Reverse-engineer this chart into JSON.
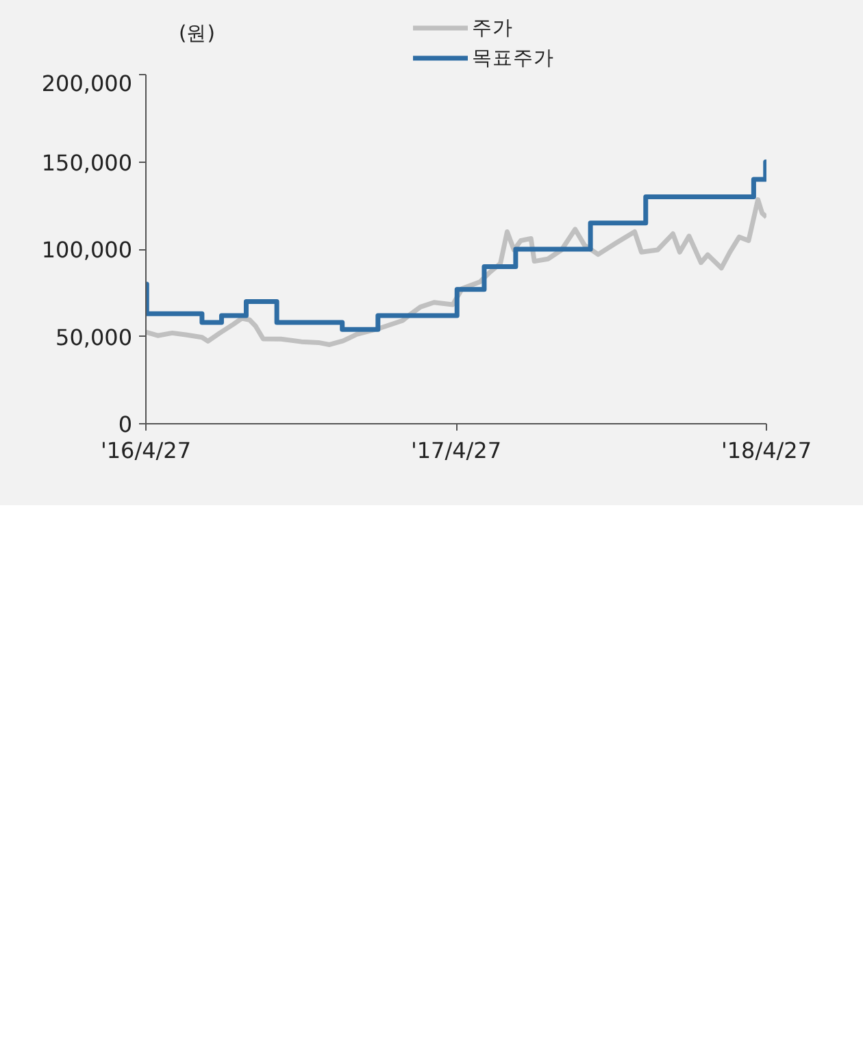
{
  "chart_data": {
    "type": "line",
    "ylabel": "(원)",
    "xlim": [
      "2016-04-27",
      "2018-04-27"
    ],
    "xticks": [
      {
        "value": "2016-04-27",
        "label": "'16/4/27"
      },
      {
        "value": "2017-04-27",
        "label": "'17/4/27"
      },
      {
        "value": "2018-04-27",
        "label": "'18/4/27"
      }
    ],
    "ylim": [
      0,
      200000
    ],
    "yticks": [
      0,
      {
        "value": 50000,
        "label": "50,000"
      },
      {
        "value": 100000,
        "label": "100,000"
      },
      {
        "value": 150000,
        "label": "150,000"
      },
      {
        "value": 200000,
        "label": "200,000"
      }
    ],
    "grid": false,
    "legend": "top",
    "series": [
      {
        "name": "주가",
        "color": "#c0c0c0",
        "x": [
          "2016-04-27",
          "2016-05-11",
          "2016-05-28",
          "2016-06-13",
          "2016-07-02",
          "2016-07-09",
          "2016-07-23",
          "2016-08-08",
          "2016-08-18",
          "2016-08-27",
          "2016-09-03",
          "2016-09-12",
          "2016-10-03",
          "2016-10-27",
          "2016-11-16",
          "2016-11-29",
          "2016-12-15",
          "2016-12-31",
          "2017-01-27",
          "2017-02-23",
          "2017-03-05",
          "2017-03-16",
          "2017-04-01",
          "2017-04-23",
          "2017-05-04",
          "2017-05-25",
          "2017-06-05",
          "2017-06-18",
          "2017-06-26",
          "2017-07-04",
          "2017-07-12",
          "2017-07-24",
          "2017-07-28",
          "2017-08-13",
          "2017-08-29",
          "2017-09-14",
          "2017-09-25",
          "2017-10-11",
          "2017-11-01",
          "2017-11-23",
          "2017-12-01",
          "2017-12-20",
          "2018-01-07",
          "2018-01-15",
          "2018-01-26",
          "2018-02-09",
          "2018-02-17",
          "2018-03-05",
          "2018-03-15",
          "2018-03-26",
          "2018-04-06",
          "2018-04-17",
          "2018-04-22",
          "2018-04-27"
        ],
        "values": [
          52500,
          50500,
          52000,
          51000,
          49500,
          47300,
          52000,
          57000,
          60400,
          59500,
          56000,
          48600,
          48500,
          47000,
          46500,
          45300,
          47500,
          51200,
          54700,
          59100,
          63000,
          66900,
          69500,
          68200,
          77400,
          81300,
          86500,
          91800,
          110000,
          99600,
          104900,
          106100,
          93100,
          94400,
          99600,
          111400,
          102300,
          97000,
          103500,
          110000,
          98300,
          99600,
          108800,
          98300,
          107500,
          92300,
          96800,
          89200,
          98300,
          107000,
          104900,
          128400,
          120600,
          118400
        ]
      },
      {
        "name": "목표주가",
        "color": "#2e6da4",
        "type": "step",
        "x": [
          "2016-04-27",
          "2016-04-28",
          "2016-07-02",
          "2016-07-25",
          "2016-08-23",
          "2016-09-28",
          "2016-12-14",
          "2017-01-25",
          "2017-04-28",
          "2017-05-30",
          "2017-07-06",
          "2017-10-02",
          "2017-12-06",
          "2018-04-12",
          "2018-04-26",
          "2018-04-27"
        ],
        "values": [
          80000,
          63000,
          58000,
          62000,
          70000,
          58000,
          54000,
          62000,
          77000,
          90000,
          100000,
          115000,
          130000,
          140000,
          150000,
          150000
        ]
      }
    ]
  }
}
